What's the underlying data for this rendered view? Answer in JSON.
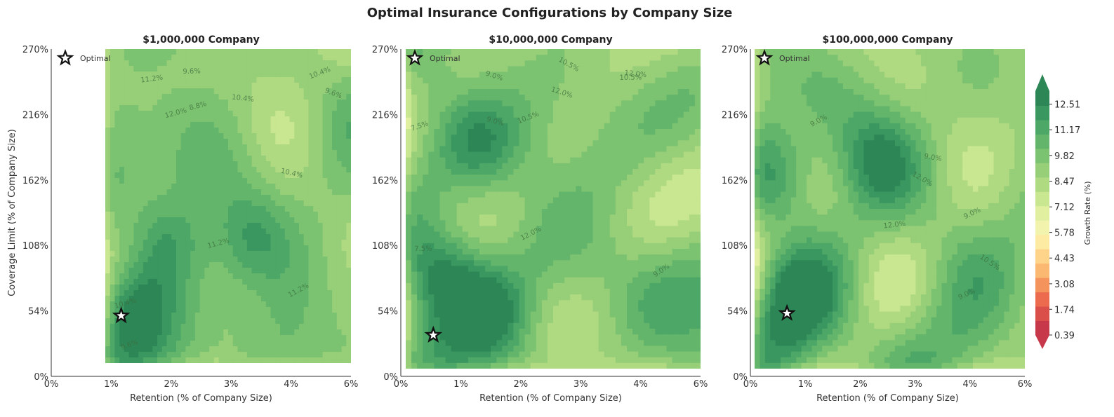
{
  "chart_data": {
    "type": "heatmap",
    "title": "Optimal Insurance Configurations by Company Size",
    "xlabel": "Retention (% of Company Size)",
    "ylabel": "Coverage Limit (% of Company Size)",
    "x_ticks": [
      "0%",
      "1%",
      "2%",
      "3%",
      "4%",
      "6%"
    ],
    "y_ticks": [
      "0%",
      "54%",
      "108%",
      "162%",
      "216%",
      "270%"
    ],
    "legend_label": "Optimal",
    "colorbar": {
      "label": "Growth Rate (%)",
      "ticks": [
        0.39,
        1.74,
        3.08,
        4.43,
        5.78,
        7.12,
        8.47,
        9.82,
        11.17,
        12.51
      ],
      "min": 0.39,
      "max": 13.2,
      "colors": [
        "#c7384b",
        "#db4f4a",
        "#ec6b4f",
        "#f5935c",
        "#fbb871",
        "#fdd48a",
        "#feeba3",
        "#f2f4ad",
        "#e0f0a0",
        "#c9e690",
        "#b0da82",
        "#97ce78",
        "#7cc371",
        "#62b56b",
        "#4da767",
        "#3a9760",
        "#2d8656"
      ]
    },
    "panels": [
      {
        "title": "$1,000,000 Company",
        "optimal": {
          "x": 1.4,
          "y": 50
        },
        "contour_labels": [
          "10.4%",
          "9.6%",
          "8.8%",
          "10.4%",
          "11.2%",
          "11.2%",
          "12.0%",
          "9.6%",
          "10.4%",
          "11.2%",
          "10.4%",
          "9.6%"
        ]
      },
      {
        "title": "$10,000,000 Company",
        "optimal": {
          "x": 0.65,
          "y": 34
        },
        "contour_labels": [
          "7.5%",
          "10.5%",
          "10.5%",
          "9.0%",
          "12.0%",
          "12.0%",
          "12.0%",
          "10.5%",
          "9.0%",
          "7.5%",
          "9.0%"
        ]
      },
      {
        "title": "$100,000,000 Company",
        "optimal": {
          "x": 0.8,
          "y": 52
        },
        "contour_labels": [
          "9.0%",
          "9.0%",
          "12.0%",
          "12.0%",
          "10.5%",
          "9.0%",
          "9.0%"
        ]
      }
    ]
  }
}
